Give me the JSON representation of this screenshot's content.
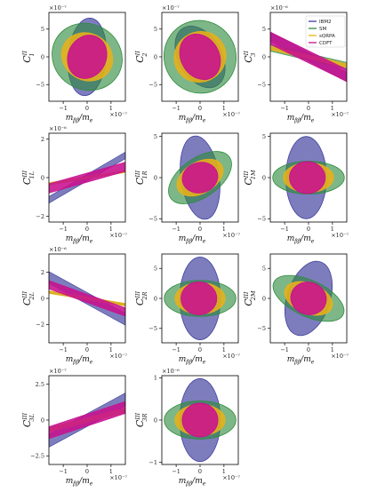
{
  "colors": {
    "IBM2": "#3f3f9e",
    "SM": "#2e8b3e",
    "sQRPA": "#e8b11a",
    "CDFT": "#c8108e"
  },
  "legend": {
    "entries": [
      "IBM2",
      "SM",
      "sQRPA",
      "CDFT"
    ]
  },
  "chart_data": [
    {
      "type": "scatter",
      "ylabel": "C1^II",
      "ylabel_main": "C",
      "ylabel_sub": "1",
      "ylabel_sup": "II",
      "xlabel": "m_ββ/m_e",
      "xlabel_main": "m",
      "xlabel_sub": "ββ",
      "xlabel_tail": "/m",
      "xlabel_tail_sub": "e",
      "xscale_text": "×10⁻⁷",
      "yscale_text": "×10⁻⁷",
      "xlim": [
        -1.6,
        1.6
      ],
      "ylim": [
        -8,
        8
      ],
      "xticks": [
        -1,
        0,
        1
      ],
      "yticks": [
        -5,
        0,
        5
      ],
      "series": [
        {
          "name": "SM",
          "ellipse": {
            "cx": 0,
            "cy": 0,
            "rx": 1.5,
            "ry": 5.9,
            "rot": -30
          }
        },
        {
          "name": "IBM2",
          "ellipse": {
            "cx": 0,
            "cy": 0,
            "rx": 0.8,
            "ry": 7.0,
            "rot": -5
          }
        },
        {
          "name": "sQRPA",
          "ellipse": {
            "cx": 0,
            "cy": 0,
            "rx": 1.1,
            "ry": 4.2,
            "rot": -30
          }
        },
        {
          "name": "CDFT",
          "ellipse": {
            "cx": 0,
            "cy": 0,
            "rx": 0.8,
            "ry": 4.0,
            "rot": -25
          }
        }
      ]
    },
    {
      "type": "scatter",
      "ylabel": "C2^II",
      "ylabel_main": "C",
      "ylabel_sub": "2",
      "ylabel_sup": "II",
      "xlabel": "m_ββ/m_e",
      "xlabel_main": "m",
      "xlabel_sub": "ββ",
      "xlabel_tail": "/m",
      "xlabel_tail_sub": "e",
      "xscale_text": "×10⁻⁷",
      "yscale_text": "×10⁻⁷",
      "xlim": [
        -1.6,
        1.6
      ],
      "ylim": [
        -8,
        8
      ],
      "xticks": [
        -1,
        0,
        1
      ],
      "yticks": [
        -5,
        0,
        5
      ],
      "series": [
        {
          "name": "SM",
          "ellipse": {
            "cx": 0,
            "cy": 0,
            "rx": 1.5,
            "ry": 6.6,
            "rot": 35
          }
        },
        {
          "name": "IBM2",
          "ellipse": {
            "cx": 0,
            "cy": 0,
            "rx": 0.9,
            "ry": 6.0,
            "rot": 30
          }
        },
        {
          "name": "sQRPA",
          "ellipse": {
            "cx": 0,
            "cy": 0,
            "rx": 1.1,
            "ry": 4.5,
            "rot": 35
          }
        },
        {
          "name": "CDFT",
          "ellipse": {
            "cx": 0,
            "cy": 0,
            "rx": 0.8,
            "ry": 4.3,
            "rot": 30
          }
        }
      ]
    },
    {
      "type": "scatter",
      "ylabel": "C3^II",
      "ylabel_main": "C",
      "ylabel_sub": "3",
      "ylabel_sup": "II",
      "xlabel": "m_ββ/m_e",
      "xlabel_main": "m",
      "xlabel_sub": "ββ",
      "xlabel_tail": "/m",
      "xlabel_tail_sub": "e",
      "xscale_text": "×10⁻⁷",
      "yscale_text": "×10⁻⁶",
      "xlim": [
        -1.6,
        1.6
      ],
      "ylim": [
        -8,
        8
      ],
      "xticks": [
        -1,
        0,
        1
      ],
      "yticks": [
        -5,
        0,
        5
      ],
      "series": [
        {
          "name": "SM",
          "band": {
            "slope": -1.0,
            "hw": 0.6
          }
        },
        {
          "name": "IBM2",
          "band": {
            "slope": -2.3,
            "hw": 0.8
          }
        },
        {
          "name": "sQRPA",
          "band": {
            "slope": -1.0,
            "hw": 0.35
          }
        },
        {
          "name": "CDFT",
          "band": {
            "slope": -2.1,
            "hw": 1.1
          }
        }
      ]
    },
    {
      "type": "scatter",
      "ylabel": "C1L^III",
      "ylabel_main": "C",
      "ylabel_sub": "1L",
      "ylabel_sup": "III",
      "xlabel": "m_ββ/m_e",
      "xlabel_main": "m",
      "xlabel_sub": "ββ",
      "xlabel_tail": "/m",
      "xlabel_tail_sub": "e",
      "xscale_text": "×10⁻⁷",
      "yscale_text": "×10⁻⁶",
      "xlim": [
        -1.6,
        1.6
      ],
      "ylim": [
        -2.3,
        2.3
      ],
      "xticks": [
        -1,
        0,
        1
      ],
      "yticks": [
        -2,
        0,
        2
      ],
      "series": [
        {
          "name": "IBM2",
          "band": {
            "slope": 0.72,
            "hw": 0.17
          }
        },
        {
          "name": "SM",
          "band": {
            "slope": 0.2,
            "hw": 0.04
          }
        },
        {
          "name": "sQRPA",
          "band": {
            "slope": 0.2,
            "hw": 0.06
          }
        },
        {
          "name": "CDFT",
          "band": {
            "slope": 0.35,
            "hw": 0.24
          }
        }
      ]
    },
    {
      "type": "scatter",
      "ylabel": "C1R^III",
      "ylabel_main": "C",
      "ylabel_sub": "1R",
      "ylabel_sup": "III",
      "xlabel": "m_ββ/m_e",
      "xlabel_main": "m",
      "xlabel_sub": "ββ",
      "xlabel_tail": "/m",
      "xlabel_tail_sub": "e",
      "xscale_text": "×10⁻⁷",
      "yscale_text": "",
      "xlim": [
        -1.6,
        1.6
      ],
      "ylim": [
        -5.4,
        5.4
      ],
      "xticks": [
        -1,
        0,
        1
      ],
      "yticks": [
        -5,
        0,
        5
      ],
      "series": [
        {
          "name": "IBM2",
          "ellipse": {
            "cx": 0,
            "cy": 0,
            "rx": 0.8,
            "ry": 5.1,
            "rot": 8
          }
        },
        {
          "name": "SM",
          "ellipse": {
            "cx": 0,
            "cy": 0,
            "rx": 1.5,
            "ry": 2.4,
            "rot": 35
          }
        },
        {
          "name": "sQRPA",
          "ellipse": {
            "cx": 0,
            "cy": 0,
            "rx": 1.05,
            "ry": 1.9,
            "rot": 30
          }
        },
        {
          "name": "CDFT",
          "ellipse": {
            "cx": 0,
            "cy": 0,
            "rx": 0.75,
            "ry": 1.85,
            "rot": 15
          }
        }
      ]
    },
    {
      "type": "scatter",
      "ylabel": "C1M^III",
      "ylabel_main": "C",
      "ylabel_sub": "1M",
      "ylabel_sup": "III",
      "xlabel": "m_ββ/m_e",
      "xlabel_main": "m",
      "xlabel_sub": "ββ",
      "xlabel_tail": "/m",
      "xlabel_tail_sub": "e",
      "xscale_text": "×10⁻⁷",
      "yscale_text": "",
      "xlim": [
        -1.6,
        1.6
      ],
      "ylim": [
        -5.4,
        5.4
      ],
      "xticks": [
        -1,
        0,
        1
      ],
      "yticks": [
        -5,
        0,
        5
      ],
      "series": [
        {
          "name": "IBM2",
          "ellipse": {
            "cx": -0.1,
            "cy": 0,
            "rx": 0.85,
            "ry": 5.0,
            "rot": 0
          }
        },
        {
          "name": "SM",
          "ellipse": {
            "cx": 0,
            "cy": 0,
            "rx": 1.5,
            "ry": 2.0,
            "rot": 0
          }
        },
        {
          "name": "sQRPA",
          "ellipse": {
            "cx": 0,
            "cy": 0,
            "rx": 1.05,
            "ry": 1.8,
            "rot": 0
          }
        },
        {
          "name": "CDFT",
          "ellipse": {
            "cx": -0.05,
            "cy": 0,
            "rx": 0.75,
            "ry": 1.95,
            "rot": 0
          }
        }
      ]
    },
    {
      "type": "scatter",
      "ylabel": "C2L^III",
      "ylabel_main": "C",
      "ylabel_sub": "2L",
      "ylabel_sup": "III",
      "xlabel": "m_ββ/m_e",
      "xlabel_main": "m",
      "xlabel_sub": "ββ",
      "xlabel_tail": "/m",
      "xlabel_tail_sub": "e",
      "xscale_text": "×10⁻⁷",
      "yscale_text": "×10⁻⁶",
      "xlim": [
        -1.6,
        1.6
      ],
      "ylim": [
        -3.4,
        3.4
      ],
      "xticks": [
        -1,
        0,
        1
      ],
      "yticks": [
        -2,
        0,
        2
      ],
      "series": [
        {
          "name": "IBM2",
          "band": {
            "slope": -1.0,
            "hw": 0.45
          }
        },
        {
          "name": "SM",
          "band": {
            "slope": -0.3,
            "hw": 0.06
          }
        },
        {
          "name": "sQRPA",
          "band": {
            "slope": -0.3,
            "hw": 0.1
          }
        },
        {
          "name": "CDFT",
          "band": {
            "slope": -0.65,
            "hw": 0.32
          }
        }
      ]
    },
    {
      "type": "scatter",
      "ylabel": "C2R^III",
      "ylabel_main": "C",
      "ylabel_sub": "2R",
      "ylabel_sup": "III",
      "xlabel": "m_ββ/m_e",
      "xlabel_main": "m",
      "xlabel_sub": "ββ",
      "xlabel_tail": "/m",
      "xlabel_tail_sub": "e",
      "xscale_text": "×10⁻⁷",
      "yscale_text": "",
      "xlim": [
        -1.6,
        1.6
      ],
      "ylim": [
        -7.4,
        7.4
      ],
      "xticks": [
        -1,
        0,
        1
      ],
      "yticks": [
        -5,
        0,
        5
      ],
      "series": [
        {
          "name": "IBM2",
          "ellipse": {
            "cx": 0,
            "cy": 0,
            "rx": 0.85,
            "ry": 6.9,
            "rot": 0
          }
        },
        {
          "name": "SM",
          "ellipse": {
            "cx": 0,
            "cy": 0,
            "rx": 1.5,
            "ry": 3.0,
            "rot": 0
          }
        },
        {
          "name": "sQRPA",
          "ellipse": {
            "cx": 0,
            "cy": 0,
            "rx": 1.05,
            "ry": 2.6,
            "rot": 0
          }
        },
        {
          "name": "CDFT",
          "ellipse": {
            "cx": -0.05,
            "cy": 0,
            "rx": 0.75,
            "ry": 2.75,
            "rot": 0
          }
        }
      ]
    },
    {
      "type": "scatter",
      "ylabel": "C2M^III",
      "ylabel_main": "C",
      "ylabel_sub": "2M",
      "ylabel_sup": "III",
      "xlabel": "m_ββ/m_e",
      "xlabel_main": "m",
      "xlabel_sub": "ββ",
      "xlabel_tail": "/m",
      "xlabel_tail_sub": "e",
      "xscale_text": "×10⁻⁷",
      "yscale_text": "",
      "xlim": [
        -1.6,
        1.6
      ],
      "ylim": [
        -7.4,
        7.4
      ],
      "xticks": [
        -1,
        0,
        1
      ],
      "yticks": [
        -5,
        0,
        5
      ],
      "series": [
        {
          "name": "IBM2",
          "ellipse": {
            "cx": 0,
            "cy": 0,
            "rx": 0.9,
            "ry": 6.4,
            "rot": -18
          }
        },
        {
          "name": "SM",
          "ellipse": {
            "cx": 0,
            "cy": 0,
            "rx": 1.6,
            "ry": 3.0,
            "rot": -25
          }
        },
        {
          "name": "sQRPA",
          "ellipse": {
            "cx": 0,
            "cy": 0,
            "rx": 1.05,
            "ry": 2.5,
            "rot": -22
          }
        },
        {
          "name": "CDFT",
          "ellipse": {
            "cx": 0,
            "cy": 0,
            "rx": 0.75,
            "ry": 2.7,
            "rot": -15
          }
        }
      ]
    },
    {
      "type": "scatter",
      "ylabel": "C3L^III",
      "ylabel_main": "C",
      "ylabel_sub": "3L",
      "ylabel_sup": "III",
      "xlabel": "m_ββ/m_e",
      "xlabel_main": "m",
      "xlabel_sub": "ββ",
      "xlabel_tail": "/m",
      "xlabel_tail_sub": "e",
      "xscale_text": "×10⁻⁷",
      "yscale_text": "×10⁻⁷",
      "xlim": [
        -1.6,
        1.6
      ],
      "ylim": [
        -3.1,
        3.1
      ],
      "xticks": [
        -1,
        0,
        1
      ],
      "yticks": [
        -2.5,
        0.0,
        2.5
      ],
      "series": [
        {
          "name": "IBM2",
          "band": {
            "slope": 0.9,
            "hw": 0.45
          }
        },
        {
          "name": "SM",
          "band": {
            "slope": 0.42,
            "hw": 0.1
          }
        },
        {
          "name": "sQRPA",
          "band": {
            "slope": 0.42,
            "hw": 0.16
          }
        },
        {
          "name": "CDFT",
          "band": {
            "slope": 0.55,
            "hw": 0.42
          }
        }
      ]
    },
    {
      "type": "scatter",
      "ylabel": "C3R^III",
      "ylabel_main": "C",
      "ylabel_sub": "3R",
      "ylabel_sup": "III",
      "xlabel": "m_ββ/m_e",
      "xlabel_main": "m",
      "xlabel_sub": "ββ",
      "xlabel_tail": "/m",
      "xlabel_tail_sub": "e",
      "xscale_text": "×10⁻⁷",
      "yscale_text": "×10⁻⁶",
      "xlim": [
        -1.6,
        1.6
      ],
      "ylim": [
        -1.05,
        1.05
      ],
      "xticks": [
        -1,
        0,
        1
      ],
      "yticks": [
        -1,
        0,
        1
      ],
      "series": [
        {
          "name": "IBM2",
          "ellipse": {
            "cx": 0,
            "cy": 0,
            "rx": 0.85,
            "ry": 0.98,
            "rot": 0
          }
        },
        {
          "name": "SM",
          "ellipse": {
            "cx": 0,
            "cy": 0,
            "rx": 1.5,
            "ry": 0.45,
            "rot": 0
          }
        },
        {
          "name": "sQRPA",
          "ellipse": {
            "cx": 0,
            "cy": 0,
            "rx": 1.05,
            "ry": 0.37,
            "rot": 0
          }
        },
        {
          "name": "CDFT",
          "ellipse": {
            "cx": 0,
            "cy": 0,
            "rx": 0.75,
            "ry": 0.4,
            "rot": 0
          }
        }
      ]
    }
  ]
}
